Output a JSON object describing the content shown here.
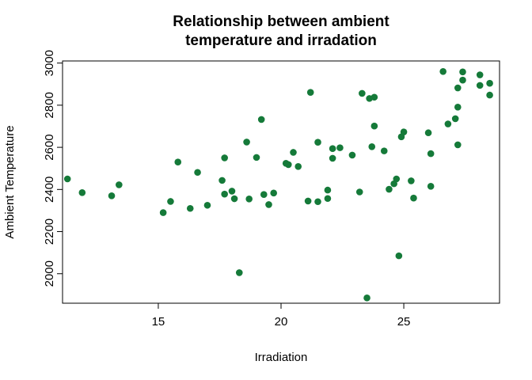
{
  "chart_data": {
    "type": "scatter",
    "title_lines": [
      "Relationship between ambient",
      "temperature and irradation"
    ],
    "xlabel": "Irradiation",
    "ylabel": "Ambient Temperature",
    "xlim": [
      11.1,
      28.9
    ],
    "ylim": [
      1860,
      3010
    ],
    "x_ticks": [
      15,
      20,
      25
    ],
    "x_tick_labels": [
      "15",
      "20",
      "25"
    ],
    "y_ticks": [
      2000,
      2200,
      2400,
      2600,
      2800,
      3000
    ],
    "y_tick_labels": [
      "2000",
      "2200",
      "2400",
      "2600",
      "2800",
      "3000"
    ],
    "grid": false,
    "point_color": "#157a39",
    "points": [
      {
        "x": 11.3,
        "y": 2450
      },
      {
        "x": 11.9,
        "y": 2385
      },
      {
        "x": 13.1,
        "y": 2370
      },
      {
        "x": 13.4,
        "y": 2422
      },
      {
        "x": 15.2,
        "y": 2290
      },
      {
        "x": 15.5,
        "y": 2343
      },
      {
        "x": 15.8,
        "y": 2530
      },
      {
        "x": 16.3,
        "y": 2310
      },
      {
        "x": 16.6,
        "y": 2481
      },
      {
        "x": 17.0,
        "y": 2325
      },
      {
        "x": 17.6,
        "y": 2443
      },
      {
        "x": 17.7,
        "y": 2378
      },
      {
        "x": 17.7,
        "y": 2550
      },
      {
        "x": 18.0,
        "y": 2392
      },
      {
        "x": 18.1,
        "y": 2356
      },
      {
        "x": 18.3,
        "y": 2005
      },
      {
        "x": 18.6,
        "y": 2625
      },
      {
        "x": 18.7,
        "y": 2355
      },
      {
        "x": 19.0,
        "y": 2552
      },
      {
        "x": 19.2,
        "y": 2732
      },
      {
        "x": 19.3,
        "y": 2376
      },
      {
        "x": 19.5,
        "y": 2328
      },
      {
        "x": 19.7,
        "y": 2383
      },
      {
        "x": 20.2,
        "y": 2524
      },
      {
        "x": 20.3,
        "y": 2518
      },
      {
        "x": 20.5,
        "y": 2576
      },
      {
        "x": 20.7,
        "y": 2509
      },
      {
        "x": 21.1,
        "y": 2345
      },
      {
        "x": 21.2,
        "y": 2861
      },
      {
        "x": 21.5,
        "y": 2342
      },
      {
        "x": 21.5,
        "y": 2624
      },
      {
        "x": 21.9,
        "y": 2397
      },
      {
        "x": 21.9,
        "y": 2357
      },
      {
        "x": 22.1,
        "y": 2594
      },
      {
        "x": 22.1,
        "y": 2548
      },
      {
        "x": 22.4,
        "y": 2598
      },
      {
        "x": 22.9,
        "y": 2563
      },
      {
        "x": 23.2,
        "y": 2388
      },
      {
        "x": 23.3,
        "y": 2856
      },
      {
        "x": 23.5,
        "y": 1885
      },
      {
        "x": 23.6,
        "y": 2832
      },
      {
        "x": 23.7,
        "y": 2603
      },
      {
        "x": 23.8,
        "y": 2838
      },
      {
        "x": 23.8,
        "y": 2701
      },
      {
        "x": 24.2,
        "y": 2583
      },
      {
        "x": 24.4,
        "y": 2401
      },
      {
        "x": 24.6,
        "y": 2427
      },
      {
        "x": 24.7,
        "y": 2450
      },
      {
        "x": 24.8,
        "y": 2085
      },
      {
        "x": 24.9,
        "y": 2650
      },
      {
        "x": 25.0,
        "y": 2673
      },
      {
        "x": 25.3,
        "y": 2441
      },
      {
        "x": 25.4,
        "y": 2359
      },
      {
        "x": 26.0,
        "y": 2669
      },
      {
        "x": 26.1,
        "y": 2570
      },
      {
        "x": 26.1,
        "y": 2415
      },
      {
        "x": 26.6,
        "y": 2960
      },
      {
        "x": 26.8,
        "y": 2711
      },
      {
        "x": 27.1,
        "y": 2736
      },
      {
        "x": 27.2,
        "y": 2791
      },
      {
        "x": 27.2,
        "y": 2882
      },
      {
        "x": 27.2,
        "y": 2612
      },
      {
        "x": 27.4,
        "y": 2919
      },
      {
        "x": 27.4,
        "y": 2958
      },
      {
        "x": 28.1,
        "y": 2944
      },
      {
        "x": 28.1,
        "y": 2894
      },
      {
        "x": 28.5,
        "y": 2904
      },
      {
        "x": 28.5,
        "y": 2848
      }
    ]
  }
}
